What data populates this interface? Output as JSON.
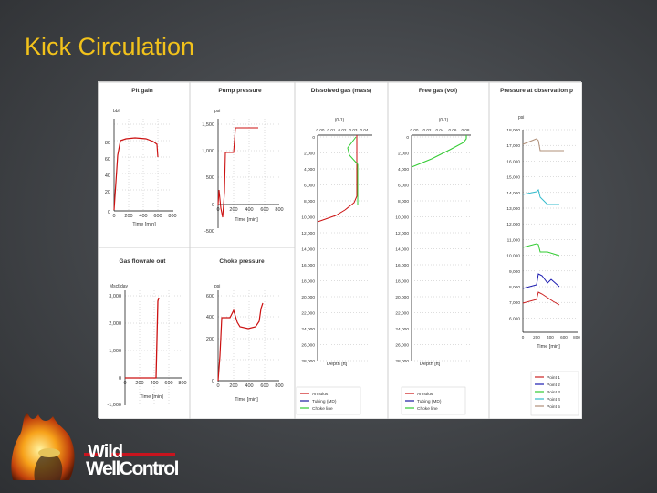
{
  "slide": {
    "title": "Kick Circulation"
  },
  "logo": {
    "line1": "Wild",
    "line2": "WellControl"
  },
  "charts": {
    "pit_gain": {
      "title": "Pit gain",
      "yunit": "bbl",
      "yticks": [
        "80",
        "60",
        "40",
        "20",
        "0"
      ],
      "xticks": [
        "0",
        "200",
        "400",
        "600",
        "800"
      ],
      "xlabel": "Time [min]"
    },
    "pump_pressure": {
      "title": "Pump pressure",
      "yunit": "psi",
      "yticks": [
        "1,500",
        "1,000",
        "500",
        "0",
        "-500"
      ],
      "xticks": [
        "0",
        "200",
        "400",
        "600",
        "800"
      ],
      "xlabel": "Time [min]"
    },
    "dissolved_gas": {
      "title": "Dissolved gas (mass)",
      "unit": "(0-1)",
      "xticks": [
        "0.00",
        "0.01",
        "0.02",
        "0.03",
        "0.04"
      ],
      "yticks": [
        "0",
        "2,000",
        "4,000",
        "6,000",
        "8,000",
        "10,000",
        "12,000",
        "14,000",
        "16,000",
        "18,000",
        "20,000",
        "22,000",
        "24,000",
        "26,000",
        "28,000"
      ],
      "ylabel": "Depth [ft]",
      "legend": [
        "Annulus",
        "Tubing (MD)",
        "Choke line"
      ]
    },
    "free_gas": {
      "title": "Free gas (vol)",
      "unit": "(0-1)",
      "xticks": [
        "0.00",
        "0.02",
        "0.04",
        "0.06",
        "0.08"
      ],
      "yticks": [
        "0",
        "2,000",
        "4,000",
        "6,000",
        "8,000",
        "10,000",
        "12,000",
        "14,000",
        "16,000",
        "18,000",
        "20,000",
        "22,000",
        "24,000",
        "26,000",
        "28,000"
      ],
      "ylabel": "Depth [ft]",
      "legend": [
        "Annulus",
        "Tubing (MD)",
        "Choke line"
      ]
    },
    "pressure_obs": {
      "title": "Pressure at observation p",
      "yunit": "psi",
      "yticks": [
        "18,000",
        "17,000",
        "16,000",
        "15,000",
        "14,000",
        "13,000",
        "12,000",
        "11,000",
        "10,000",
        "9,000",
        "8,000",
        "7,000",
        "6,000"
      ],
      "xticks": [
        "0",
        "200",
        "400",
        "600",
        "800"
      ],
      "xlabel": "Time [min]",
      "legend": [
        "Point 1",
        "Point 2",
        "Point 3",
        "Point 4",
        "Point 5"
      ]
    },
    "gas_flowrate": {
      "title": "Gas flowrate out",
      "yunit": "Mscf/day",
      "yticks": [
        "3,000",
        "2,000",
        "1,000",
        "0",
        "-1,000"
      ],
      "xticks": [
        "0",
        "200",
        "400",
        "600",
        "800"
      ],
      "xlabel": "Time [min]"
    },
    "choke_pressure": {
      "title": "Choke pressure",
      "yunit": "psi",
      "yticks": [
        "600",
        "400",
        "200",
        "0"
      ],
      "xticks": [
        "0",
        "200",
        "400",
        "600",
        "800"
      ],
      "xlabel": "Time [min]"
    }
  },
  "colors": {
    "annulus": "#cc1111",
    "tubing": "#1a1aa0",
    "choke": "#33cc33",
    "point1": "#cc2222",
    "point2": "#1a1ab0",
    "point3": "#33cc33",
    "point4": "#33bbcc",
    "point5": "#b0907a"
  }
}
